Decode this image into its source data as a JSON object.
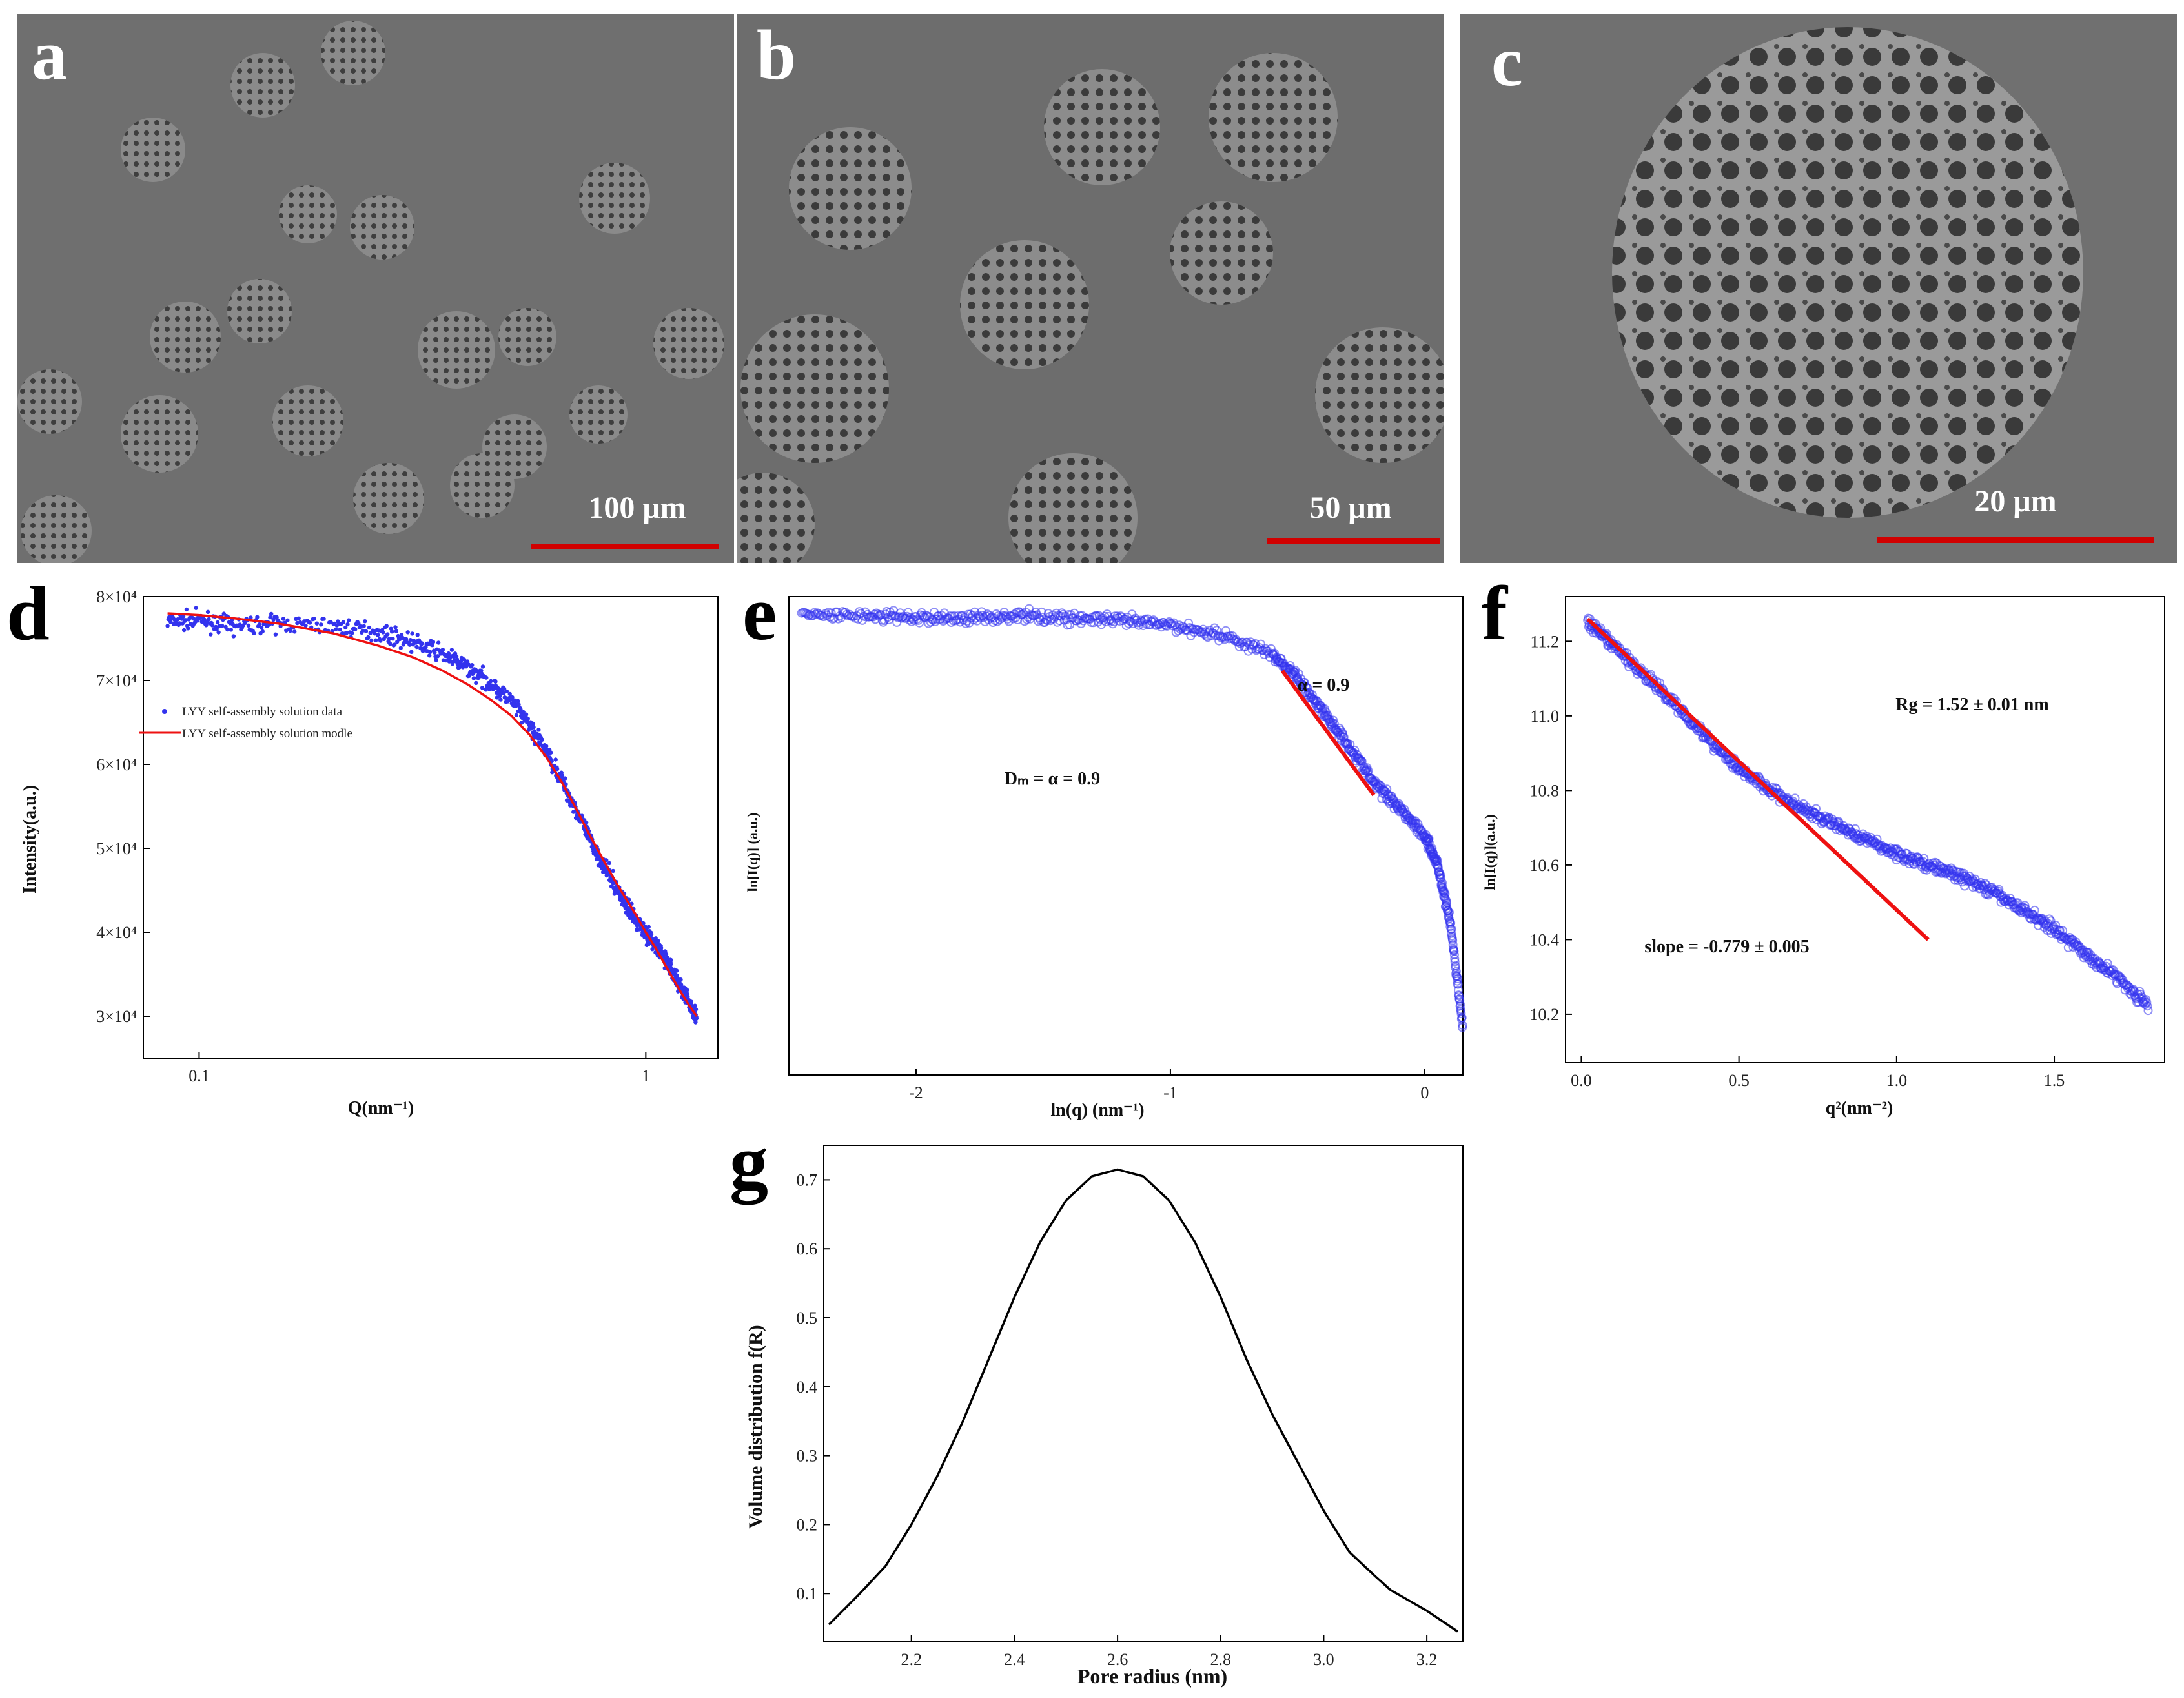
{
  "panels": {
    "a": {
      "letter": "a",
      "scale_text": "100 μm"
    },
    "b": {
      "letter": "b",
      "scale_text": "50 μm"
    },
    "c": {
      "letter": "c",
      "scale_text": "20 μm"
    },
    "d": {
      "letter": "d"
    },
    "e": {
      "letter": "e"
    },
    "f": {
      "letter": "f"
    },
    "g": {
      "letter": "g"
    }
  },
  "colors": {
    "data_blue": "#3333ee",
    "fit_red": "#ee1111",
    "scale_red": "#d10000",
    "sem_gray": "#6e6e6e",
    "curve_black": "#000000"
  },
  "chart_data": [
    {
      "panel": "d",
      "type": "scatter",
      "xscale": "log",
      "xlabel": "Q(nm⁻¹)",
      "ylabel": "Intensity(a.u.)",
      "xlim": [
        0.075,
        1.45
      ],
      "ylim": [
        25000,
        80000
      ],
      "xticks": [
        {
          "v": 0.1,
          "label": "0.1"
        },
        {
          "v": 1,
          "label": "1"
        }
      ],
      "yticks": [
        {
          "v": 30000,
          "label": "3×10⁴"
        },
        {
          "v": 40000,
          "label": "4×10⁴"
        },
        {
          "v": 50000,
          "label": "5×10⁴"
        },
        {
          "v": 60000,
          "label": "6×10⁴"
        },
        {
          "v": 70000,
          "label": "7×10⁴"
        },
        {
          "v": 80000,
          "label": "8×10⁴"
        }
      ],
      "legend": [
        "LYY self-assembly solution data",
        "LYY self-assembly solution modle"
      ],
      "series": [
        {
          "name": "LYY self-assembly solution data",
          "style": "points",
          "x": [
            0.085,
            0.1,
            0.12,
            0.15,
            0.2,
            0.25,
            0.3,
            0.35,
            0.4,
            0.45,
            0.5,
            0.55,
            0.6,
            0.65,
            0.7,
            0.75,
            0.8,
            0.85,
            0.9,
            0.95,
            1.0,
            1.05,
            1.1,
            1.15,
            1.2,
            1.25,
            1.3
          ],
          "y": [
            77000,
            77200,
            76500,
            76800,
            76500,
            75800,
            74600,
            73200,
            71500,
            69600,
            67500,
            64600,
            61500,
            58000,
            54500,
            51000,
            48200,
            45800,
            43400,
            41500,
            40000,
            38500,
            37000,
            35300,
            33300,
            31600,
            30000
          ]
        },
        {
          "name": "LYY self-assembly solution modle",
          "style": "line",
          "x": [
            0.085,
            0.1,
            0.12,
            0.15,
            0.2,
            0.25,
            0.3,
            0.35,
            0.4,
            0.45,
            0.5,
            0.55,
            0.6,
            0.65,
            0.7,
            0.75,
            0.8,
            0.85,
            0.9,
            0.95,
            1.0,
            1.05,
            1.1,
            1.15,
            1.2,
            1.25,
            1.3
          ],
          "y": [
            78000,
            77800,
            77400,
            76800,
            75600,
            74200,
            72800,
            71200,
            69500,
            67700,
            65800,
            63500,
            60800,
            57800,
            54600,
            51500,
            48800,
            46300,
            44100,
            42100,
            40000,
            38200,
            36300,
            34500,
            32800,
            31300,
            30000
          ]
        }
      ]
    },
    {
      "panel": "e",
      "type": "scatter",
      "xlabel": "ln(q) (nm⁻¹)",
      "ylabel": "ln[I(q)] (a.u.)",
      "xlim": [
        -2.5,
        0.15
      ],
      "ylim": [
        0,
        1
      ],
      "xticks": [
        {
          "v": -2,
          "label": "-2"
        },
        {
          "v": -1,
          "label": "-1"
        },
        {
          "v": 0,
          "label": "0"
        }
      ],
      "annotations": [
        "α = 0.9",
        "Dₘ = α = 0.9"
      ],
      "series": [
        {
          "style": "points",
          "x": [
            -2.45,
            -2.2,
            -2.0,
            -1.8,
            -1.6,
            -1.4,
            -1.2,
            -1.0,
            -0.8,
            -0.6,
            -0.5,
            -0.4,
            -0.3,
            -0.2,
            -0.1,
            0.0,
            0.05,
            0.1,
            0.15
          ],
          "y": [
            0.96,
            0.96,
            0.955,
            0.955,
            0.96,
            0.955,
            0.95,
            0.94,
            0.92,
            0.88,
            0.83,
            0.76,
            0.69,
            0.61,
            0.56,
            0.5,
            0.44,
            0.32,
            0.1
          ]
        },
        {
          "style": "line",
          "x": [
            -0.56,
            -0.2
          ],
          "y": [
            0.845,
            0.585
          ]
        }
      ]
    },
    {
      "panel": "f",
      "type": "scatter",
      "xlabel": "q²(nm⁻²)",
      "ylabel": "ln[I(q)](a.u.)",
      "xlim": [
        -0.05,
        1.85
      ],
      "ylim": [
        10.07,
        11.32
      ],
      "xticks": [
        {
          "v": 0,
          "label": "0.0"
        },
        {
          "v": 0.5,
          "label": "0.5"
        },
        {
          "v": 1.0,
          "label": "1.0"
        },
        {
          "v": 1.5,
          "label": "1.5"
        }
      ],
      "yticks": [
        {
          "v": 10.2,
          "label": "10.2"
        },
        {
          "v": 10.4,
          "label": "10.4"
        },
        {
          "v": 10.6,
          "label": "10.6"
        },
        {
          "v": 10.8,
          "label": "10.8"
        },
        {
          "v": 11.0,
          "label": "11.0"
        },
        {
          "v": 11.2,
          "label": "11.2"
        }
      ],
      "annotations": [
        "Rg = 1.52 ± 0.01 nm",
        "slope = -0.779 ± 0.005"
      ],
      "series": [
        {
          "style": "points",
          "x": [
            0.02,
            0.1,
            0.2,
            0.3,
            0.4,
            0.5,
            0.6,
            0.7,
            0.8,
            0.9,
            1.0,
            1.1,
            1.2,
            1.3,
            1.4,
            1.5,
            1.6,
            1.7,
            1.8
          ],
          "y": [
            11.25,
            11.19,
            11.11,
            11.03,
            10.94,
            10.86,
            10.8,
            10.75,
            10.71,
            10.67,
            10.63,
            10.6,
            10.57,
            10.53,
            10.48,
            10.43,
            10.36,
            10.3,
            10.22
          ]
        },
        {
          "style": "line",
          "x": [
            0.02,
            1.1
          ],
          "y": [
            11.26,
            10.4
          ]
        }
      ]
    },
    {
      "panel": "g",
      "type": "line",
      "xlabel": "Pore radius (nm)",
      "ylabel": "Volume distribution f(R)",
      "xlim": [
        2.03,
        3.27
      ],
      "ylim": [
        0.03,
        0.75
      ],
      "xticks": [
        {
          "v": 2.2,
          "label": "2.2"
        },
        {
          "v": 2.4,
          "label": "2.4"
        },
        {
          "v": 2.6,
          "label": "2.6"
        },
        {
          "v": 2.8,
          "label": "2.8"
        },
        {
          "v": 3.0,
          "label": "3.0"
        },
        {
          "v": 3.2,
          "label": "3.2"
        }
      ],
      "yticks": [
        {
          "v": 0.1,
          "label": "0.1"
        },
        {
          "v": 0.2,
          "label": "0.2"
        },
        {
          "v": 0.3,
          "label": "0.3"
        },
        {
          "v": 0.4,
          "label": "0.4"
        },
        {
          "v": 0.5,
          "label": "0.5"
        },
        {
          "v": 0.6,
          "label": "0.6"
        },
        {
          "v": 0.7,
          "label": "0.7"
        }
      ],
      "series": [
        {
          "style": "line",
          "x": [
            2.04,
            2.1,
            2.15,
            2.2,
            2.25,
            2.3,
            2.35,
            2.4,
            2.45,
            2.5,
            2.55,
            2.6,
            2.65,
            2.7,
            2.75,
            2.8,
            2.85,
            2.9,
            2.95,
            3.0,
            3.05,
            3.1,
            3.13,
            3.2,
            3.26
          ],
          "y": [
            0.055,
            0.1,
            0.14,
            0.2,
            0.27,
            0.35,
            0.44,
            0.53,
            0.61,
            0.67,
            0.705,
            0.715,
            0.705,
            0.67,
            0.61,
            0.53,
            0.44,
            0.36,
            0.29,
            0.22,
            0.16,
            0.125,
            0.105,
            0.075,
            0.045
          ]
        }
      ]
    }
  ]
}
